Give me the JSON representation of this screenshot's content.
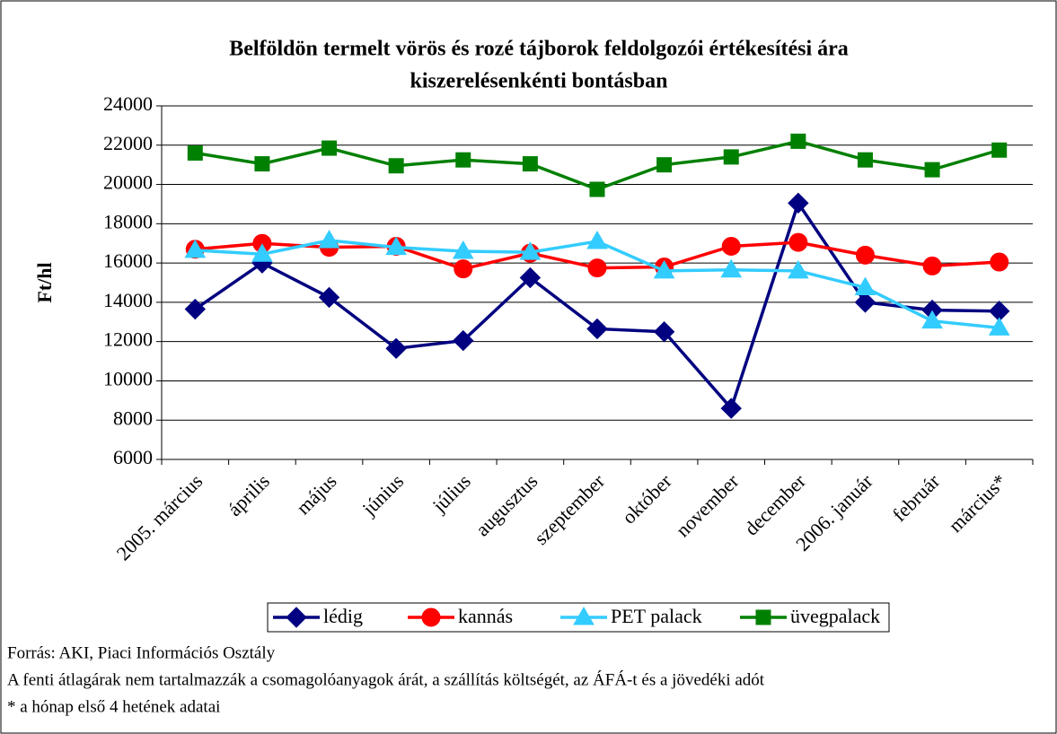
{
  "chart_data": {
    "type": "line",
    "title": [
      "Belföldön termelt vörös és rozé tájborok feldolgozói értékesítési ára",
      "kiszerelésenkénti bontásban"
    ],
    "y_label": "Ft/hl",
    "categories": [
      "2005. március",
      "április",
      "május",
      "június",
      "július",
      "augusztus",
      "szeptember",
      "október",
      "november",
      "december",
      "2006. január",
      "február",
      "március*"
    ],
    "series": [
      {
        "name": "lédig",
        "color": "#000080",
        "marker": "diamond",
        "values": [
          13650,
          16000,
          14250,
          11650,
          12050,
          15250,
          12650,
          12500,
          8600,
          19050,
          14000,
          13600,
          13550
        ]
      },
      {
        "name": "kannás",
        "color": "#ff0000",
        "marker": "circle",
        "values": [
          16700,
          17000,
          16800,
          16850,
          15700,
          16500,
          15750,
          15800,
          16850,
          17050,
          16400,
          15850,
          16050
        ]
      },
      {
        "name": "PET palack",
        "color": "#33ccff",
        "marker": "triangle",
        "values": [
          16650,
          16450,
          17150,
          16800,
          16600,
          16550,
          17100,
          15600,
          15650,
          15600,
          14750,
          13050,
          12700
        ]
      },
      {
        "name": "üvegpalack",
        "color": "#008000",
        "marker": "square",
        "values": [
          21600,
          21050,
          21850,
          20950,
          21250,
          21050,
          19750,
          21000,
          21400,
          22200,
          21250,
          20750,
          21750
        ]
      }
    ],
    "ylim": [
      6000,
      24000
    ],
    "yticks": [
      6000,
      8000,
      10000,
      12000,
      14000,
      16000,
      18000,
      20000,
      22000,
      24000
    ],
    "grid": true,
    "legend": "bottom",
    "notes": [
      "Forrás: AKI, Piaci Információs Osztály",
      "A fenti átlagárak nem tartalmazzák a csomagolóanyagok árát, a szállítás költségét, az ÁFÁ-t és a jövedéki adót",
      "* a hónap első 4 hetének adatai"
    ]
  }
}
